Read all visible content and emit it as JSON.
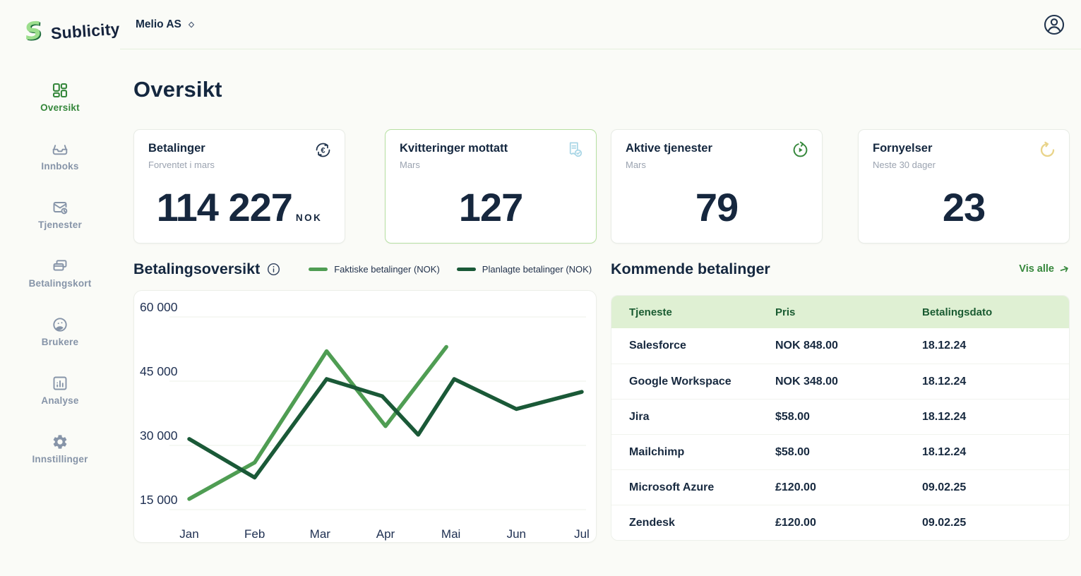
{
  "brand": {
    "name": "Sublicity"
  },
  "header": {
    "org_name": "Melio AS"
  },
  "sidebar": {
    "items": [
      {
        "label": "Oversikt",
        "icon": "dashboard-icon",
        "active": true
      },
      {
        "label": "Innboks",
        "icon": "inbox-icon",
        "active": false
      },
      {
        "label": "Tjenester",
        "icon": "mail-clock-icon",
        "active": false
      },
      {
        "label": "Betalingskort",
        "icon": "cards-icon",
        "active": false
      },
      {
        "label": "Brukere",
        "icon": "users-icon",
        "active": false
      },
      {
        "label": "Analyse",
        "icon": "analytics-icon",
        "active": false
      },
      {
        "label": "Innstillinger",
        "icon": "settings-icon",
        "active": false
      }
    ]
  },
  "page": {
    "title": "Oversikt"
  },
  "stat_cards": [
    {
      "title": "Betalinger",
      "subtitle": "Forventet i mars",
      "value": "114 227",
      "unit": "NOK",
      "icon": "currency-exchange-icon",
      "icon_color": "#22354E",
      "highlighted": false
    },
    {
      "title": "Kvitteringer mottatt",
      "subtitle": "Mars",
      "value": "127",
      "unit": "",
      "icon": "receipt-check-icon",
      "icon_color": "#A9D6E6",
      "highlighted": true
    },
    {
      "title": "Aktive tjenester",
      "subtitle": "Mars",
      "value": "79",
      "unit": "",
      "icon": "play-cycle-icon",
      "icon_color": "#35873B",
      "highlighted": false
    },
    {
      "title": "Fornyelser",
      "subtitle": "Neste 30 dager",
      "value": "23",
      "unit": "",
      "icon": "renew-icon",
      "icon_color": "#E9D48A",
      "highlighted": false
    }
  ],
  "payments_overview": {
    "title": "Betalingsoversikt"
  },
  "chart_data": {
    "type": "line",
    "x_ticks": [
      "Jan",
      "Feb",
      "Mar",
      "Apr",
      "Mai",
      "Jun",
      "Jul"
    ],
    "y_ticks": [
      "60 000",
      "45 000",
      "30 000",
      "15 000"
    ],
    "y_gridline_values": [
      60000,
      45000,
      30000,
      15000
    ],
    "y_axis_range": [
      15000,
      60000
    ],
    "grid": "horizontal-only",
    "legend_position": "top",
    "series": [
      {
        "name": "Faktiske betalinger (NOK)",
        "color": "#4F9D53",
        "points": [
          {
            "x": 0,
            "v": 17500
          },
          {
            "x": 1,
            "v": 26000
          },
          {
            "x": 2.1,
            "v": 52000
          },
          {
            "x": 3,
            "v": 34500
          },
          {
            "x": 3.93,
            "v": 53000
          }
        ]
      },
      {
        "name": "Planlagte betalinger (NOK)",
        "color": "#1A5937",
        "points": [
          {
            "x": 0,
            "v": 31500
          },
          {
            "x": 1,
            "v": 22500
          },
          {
            "x": 2.1,
            "v": 45500
          },
          {
            "x": 2.95,
            "v": 41500
          },
          {
            "x": 3.5,
            "v": 32500
          },
          {
            "x": 4.05,
            "v": 45500
          },
          {
            "x": 5,
            "v": 38500
          },
          {
            "x": 6,
            "v": 42500
          }
        ]
      }
    ]
  },
  "upcoming_payments": {
    "title": "Kommende betalinger",
    "link_label": "Vis alle",
    "columns": [
      "Tjeneste",
      "Pris",
      "Betalingsdato"
    ],
    "rows": [
      {
        "service": "Salesforce",
        "price": "NOK 848.00",
        "date": "18.12.24"
      },
      {
        "service": "Google Workspace",
        "price": "NOK 348.00",
        "date": "18.12.24"
      },
      {
        "service": "Jira",
        "price": "$58.00",
        "date": "18.12.24"
      },
      {
        "service": "Mailchimp",
        "price": "$58.00",
        "date": "18.12.24"
      },
      {
        "service": "Microsoft Azure",
        "price": "£120.00",
        "date": "09.02.25"
      },
      {
        "service": "Zendesk",
        "price": "£120.00",
        "date": "09.02.25"
      }
    ]
  },
  "colors": {
    "background": "#FAFBF7",
    "navy_text": "#152A44",
    "accent_green": "#35873B",
    "table_header_bg": "#DFF0D3",
    "table_header_text": "#1A5B31",
    "line_actual": "#4F9D53",
    "line_planned": "#1A5937",
    "highlight_card_border": "#B6E0A2"
  }
}
